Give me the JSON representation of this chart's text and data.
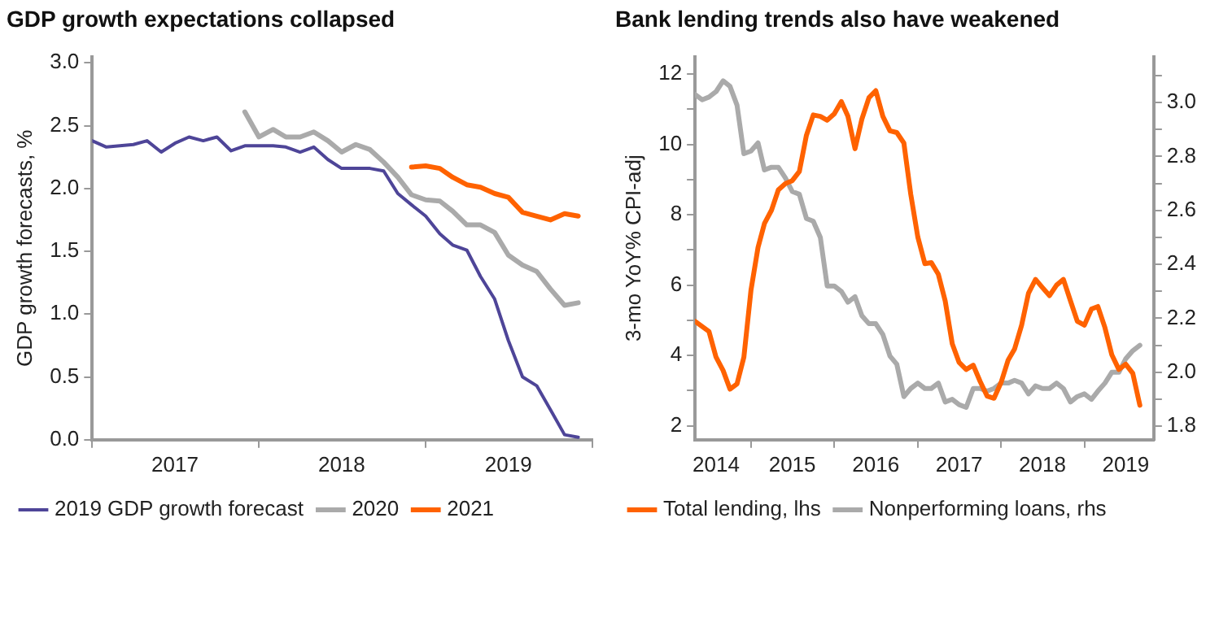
{
  "chart_data": [
    {
      "type": "line",
      "title": "GDP growth expectations collapsed",
      "ylabel": "GDP growth forecasts, %",
      "legend": "bottom",
      "xlim": [
        "2017-01",
        "2020-01"
      ],
      "xticks": [
        {
          "value": "2017-01",
          "label": null
        },
        {
          "value": "2017-07",
          "label": "2017"
        },
        {
          "value": "2018-01",
          "label": null
        },
        {
          "value": "2018-07",
          "label": "2018"
        },
        {
          "value": "2019-01",
          "label": null
        },
        {
          "value": "2019-07",
          "label": "2019"
        },
        {
          "value": "2020-01",
          "label": null
        }
      ],
      "ylim": [
        0,
        3.05
      ],
      "yticks": [
        {
          "value": 0,
          "label": "0.0"
        },
        {
          "value": 0.5,
          "label": "0.5"
        },
        {
          "value": 1,
          "label": "1.0"
        },
        {
          "value": 1.5,
          "label": "1.5"
        },
        {
          "value": 2,
          "label": "2.0"
        },
        {
          "value": 2.5,
          "label": "2.5"
        },
        {
          "value": 3,
          "label": "3.0"
        }
      ],
      "series": [
        {
          "name": "2019 GDP growth forecast",
          "color": "#4e4598",
          "x": [
            "2017-01",
            "2017-02",
            "2017-04",
            "2017-05",
            "2017-06",
            "2017-07",
            "2017-08",
            "2017-09",
            "2017-10",
            "2017-11",
            "2017-12",
            "2018-02",
            "2018-03",
            "2018-04",
            "2018-05",
            "2018-06",
            "2018-07",
            "2018-09",
            "2018-10",
            "2018-11",
            "2018-12",
            "2019-01",
            "2019-02",
            "2019-03",
            "2019-04",
            "2019-05",
            "2019-06",
            "2019-07",
            "2019-08",
            "2019-09",
            "2019-10",
            "2019-11",
            "2019-12"
          ],
          "values": [
            2.38,
            2.33,
            2.35,
            2.38,
            2.29,
            2.36,
            2.41,
            2.38,
            2.41,
            2.3,
            2.34,
            2.34,
            2.33,
            2.29,
            2.33,
            2.23,
            2.16,
            2.16,
            2.14,
            1.96,
            1.87,
            1.78,
            1.64,
            1.55,
            1.51,
            1.3,
            1.12,
            0.79,
            0.5,
            0.43,
            0.24,
            0.04,
            0.02
          ]
        },
        {
          "name": "2020",
          "color": "#aaaaaa",
          "x": [
            "2017-12",
            "2018-01",
            "2018-02",
            "2018-03",
            "2018-04",
            "2018-05",
            "2018-06",
            "2018-07",
            "2018-08",
            "2018-09",
            "2018-10",
            "2018-11",
            "2018-12",
            "2019-01",
            "2019-02",
            "2019-03",
            "2019-04",
            "2019-05",
            "2019-06",
            "2019-07",
            "2019-08",
            "2019-09",
            "2019-10",
            "2019-11",
            "2019-12"
          ],
          "values": [
            2.61,
            2.41,
            2.47,
            2.41,
            2.41,
            2.45,
            2.38,
            2.29,
            2.35,
            2.31,
            2.21,
            2.09,
            1.95,
            1.91,
            1.9,
            1.82,
            1.71,
            1.71,
            1.65,
            1.47,
            1.39,
            1.34,
            1.2,
            1.07,
            1.09
          ]
        },
        {
          "name": "2021",
          "color": "#ff6200",
          "x": [
            "2018-12",
            "2019-01",
            "2019-02",
            "2019-03",
            "2019-04",
            "2019-05",
            "2019-06",
            "2019-07",
            "2019-08",
            "2019-09",
            "2019-10",
            "2019-11",
            "2019-12"
          ],
          "values": [
            2.17,
            2.18,
            2.16,
            2.09,
            2.03,
            2.01,
            1.96,
            1.93,
            1.81,
            1.78,
            1.75,
            1.8,
            1.78
          ]
        }
      ]
    },
    {
      "type": "line",
      "title": "Bank lending trends also have weakened",
      "ylabel": "3-mo YoY% CPI-adj",
      "legend": "bottom",
      "xlim": [
        "2014-05",
        "2019-11"
      ],
      "xticks": [
        {
          "value": "2014-08",
          "label": "2014"
        },
        {
          "value": "2015-01",
          "label": null
        },
        {
          "value": "2015-07",
          "label": "2015"
        },
        {
          "value": "2016-01",
          "label": null
        },
        {
          "value": "2016-07",
          "label": "2016"
        },
        {
          "value": "2017-01",
          "label": null
        },
        {
          "value": "2017-07",
          "label": "2017"
        },
        {
          "value": "2018-01",
          "label": null
        },
        {
          "value": "2018-07",
          "label": "2018"
        },
        {
          "value": "2019-01",
          "label": null
        },
        {
          "value": "2019-07",
          "label": "2019"
        }
      ],
      "ylim": [
        1.6,
        12.5
      ],
      "yticks": [
        2,
        {
          "value": 3,
          "label": null
        },
        4,
        {
          "value": 5,
          "label": null
        },
        6,
        {
          "value": 7,
          "label": null
        },
        8,
        {
          "value": 9,
          "label": null
        },
        10,
        {
          "value": 11,
          "label": null
        },
        12
      ],
      "y2lim": [
        1.75,
        3.17
      ],
      "y2ticks": [
        {
          "value": 1.8,
          "label": "1.8"
        },
        {
          "value": 1.9,
          "label": null
        },
        {
          "value": 2,
          "label": "2.0"
        },
        {
          "value": 2.1,
          "label": null
        },
        {
          "value": 2.2,
          "label": "2.2"
        },
        {
          "value": 2.3,
          "label": null
        },
        {
          "value": 2.4,
          "label": "2.4"
        },
        {
          "value": 2.5,
          "label": null
        },
        {
          "value": 2.6,
          "label": "2.6"
        },
        {
          "value": 2.7,
          "label": null
        },
        {
          "value": 2.8,
          "label": "2.8"
        },
        {
          "value": 2.9,
          "label": null
        },
        {
          "value": 3,
          "label": "3.0"
        },
        {
          "value": 3.1,
          "label": null
        }
      ],
      "series": [
        {
          "name": "Total lending, lhs",
          "color": "#ff6200",
          "axis": "y",
          "x": [
            "2014-05",
            "2014-07",
            "2014-08",
            "2014-09",
            "2014-10",
            "2014-11",
            "2014-12",
            "2015-01",
            "2015-02",
            "2015-03",
            "2015-04",
            "2015-05",
            "2015-06",
            "2015-07",
            "2015-08",
            "2015-09",
            "2015-10",
            "2015-11",
            "2015-12",
            "2016-01",
            "2016-02",
            "2016-03",
            "2016-04",
            "2016-05",
            "2016-06",
            "2016-07",
            "2016-08",
            "2016-09",
            "2016-10",
            "2016-11",
            "2016-12",
            "2017-01",
            "2017-02",
            "2017-03",
            "2017-04",
            "2017-05",
            "2017-06",
            "2017-07",
            "2017-08",
            "2017-09",
            "2017-10",
            "2017-11",
            "2017-12",
            "2018-01",
            "2018-02",
            "2018-03",
            "2018-04",
            "2018-05",
            "2018-06",
            "2018-07",
            "2018-08",
            "2018-09",
            "2018-10",
            "2018-11",
            "2018-12",
            "2019-01",
            "2019-02",
            "2019-03",
            "2019-04",
            "2019-05",
            "2019-06",
            "2019-07",
            "2019-08",
            "2019-09"
          ],
          "values": [
            4.97,
            4.68,
            3.95,
            3.57,
            3.04,
            3.19,
            3.95,
            5.85,
            7.07,
            7.75,
            8.13,
            8.71,
            8.89,
            8.97,
            9.23,
            10.26,
            10.84,
            10.8,
            10.69,
            10.87,
            11.22,
            10.8,
            9.88,
            10.72,
            11.33,
            11.53,
            10.8,
            10.39,
            10.34,
            10.04,
            8.59,
            7.37,
            6.61,
            6.64,
            6.31,
            5.55,
            4.33,
            3.8,
            3.6,
            3.72,
            3.26,
            2.84,
            2.78,
            3.23,
            3.87,
            4.18,
            4.86,
            5.77,
            6.16,
            5.93,
            5.7,
            6.0,
            6.16,
            5.55,
            4.97,
            4.86,
            5.32,
            5.39,
            4.79,
            4.02,
            3.6,
            3.75,
            3.49,
            2.58
          ]
        },
        {
          "name": "Nonperforming loans, rhs",
          "color": "#aaaaaa",
          "axis": "y2",
          "x": [
            "2014-05",
            "2014-06",
            "2014-07",
            "2014-08",
            "2014-09",
            "2014-10",
            "2014-11",
            "2014-12",
            "2015-01",
            "2015-02",
            "2015-03",
            "2015-04",
            "2015-05",
            "2015-06",
            "2015-07",
            "2015-08",
            "2015-09",
            "2015-10",
            "2015-11",
            "2015-12",
            "2016-01",
            "2016-02",
            "2016-03",
            "2016-04",
            "2016-05",
            "2016-06",
            "2016-07",
            "2016-08",
            "2016-09",
            "2016-10",
            "2016-11",
            "2016-12",
            "2017-01",
            "2017-02",
            "2017-03",
            "2017-04",
            "2017-05",
            "2017-06",
            "2017-07",
            "2017-08",
            "2017-09",
            "2017-10",
            "2017-11",
            "2017-12",
            "2018-01",
            "2018-02",
            "2018-03",
            "2018-04",
            "2018-05",
            "2018-06",
            "2018-07",
            "2018-08",
            "2018-09",
            "2018-10",
            "2018-11",
            "2018-12",
            "2019-01",
            "2019-02",
            "2019-03",
            "2019-04",
            "2019-05",
            "2019-06",
            "2019-07",
            "2019-08",
            "2019-09"
          ],
          "values": [
            3.03,
            3.01,
            3.02,
            3.04,
            3.08,
            3.06,
            2.99,
            2.81,
            2.82,
            2.85,
            2.75,
            2.76,
            2.76,
            2.72,
            2.67,
            2.66,
            2.57,
            2.56,
            2.5,
            2.32,
            2.32,
            2.3,
            2.26,
            2.28,
            2.21,
            2.18,
            2.18,
            2.14,
            2.06,
            2.03,
            1.91,
            1.94,
            1.96,
            1.94,
            1.94,
            1.96,
            1.89,
            1.9,
            1.88,
            1.87,
            1.94,
            1.94,
            1.93,
            1.94,
            1.96,
            1.96,
            1.97,
            1.96,
            1.92,
            1.95,
            1.94,
            1.94,
            1.96,
            1.94,
            1.89,
            1.91,
            1.92,
            1.9,
            1.93,
            1.96,
            2.0,
            2.0,
            2.05,
            2.08,
            2.1
          ]
        }
      ]
    }
  ]
}
